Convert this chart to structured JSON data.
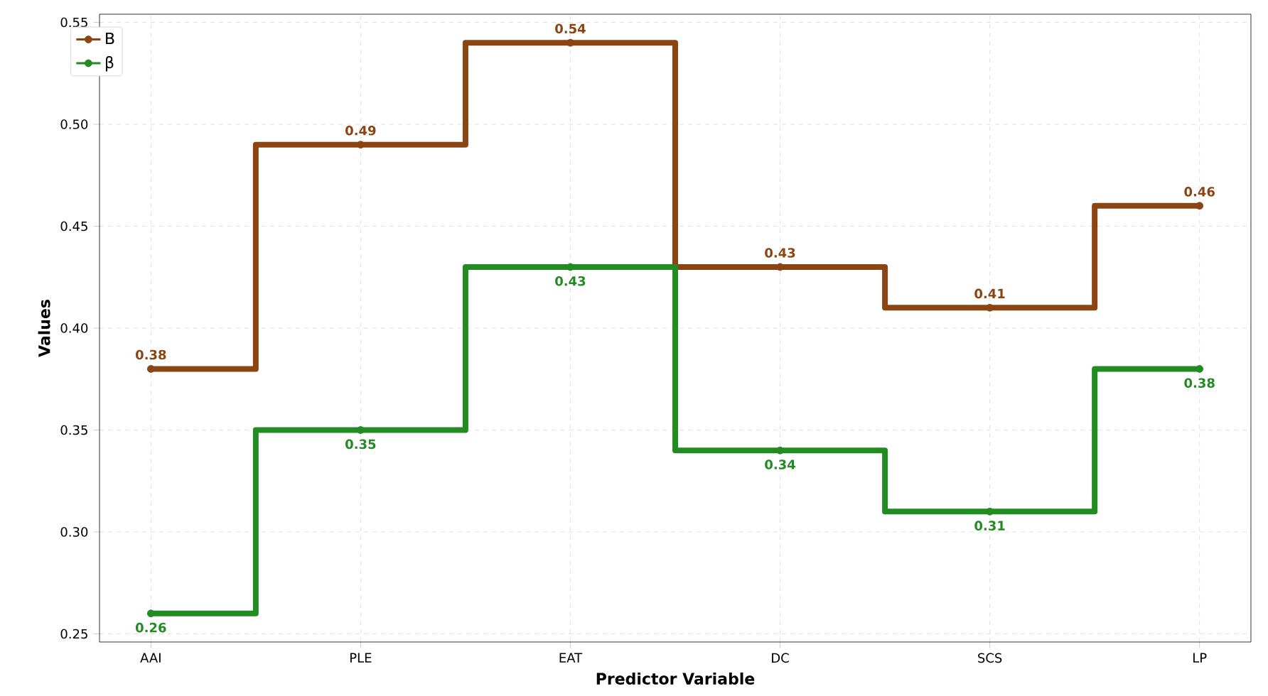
{
  "chart_data": {
    "type": "step",
    "xlabel": "Predictor Variable",
    "ylabel": "Values",
    "categories": [
      "AAI",
      "PLE",
      "EAT",
      "DC",
      "SCS",
      "LP"
    ],
    "series": [
      {
        "name": "B",
        "color": "#8b4513",
        "values": [
          0.38,
          0.49,
          0.54,
          0.43,
          0.41,
          0.46
        ]
      },
      {
        "name": "β",
        "color": "#228b22",
        "values": [
          0.26,
          0.35,
          0.43,
          0.34,
          0.31,
          0.38
        ]
      }
    ],
    "ylim": [
      0.246,
      0.554
    ],
    "yticks": [
      0.25,
      {
        "value": 0.3,
        "label": "0.30"
      },
      0.35,
      {
        "value": 0.4,
        "label": "0.40"
      },
      0.45,
      {
        "value": 0.5,
        "label": "0.50"
      },
      0.55
    ],
    "grid": true,
    "legend": "top left",
    "marker": "circle",
    "line_style": "solid",
    "data_labels": true
  }
}
